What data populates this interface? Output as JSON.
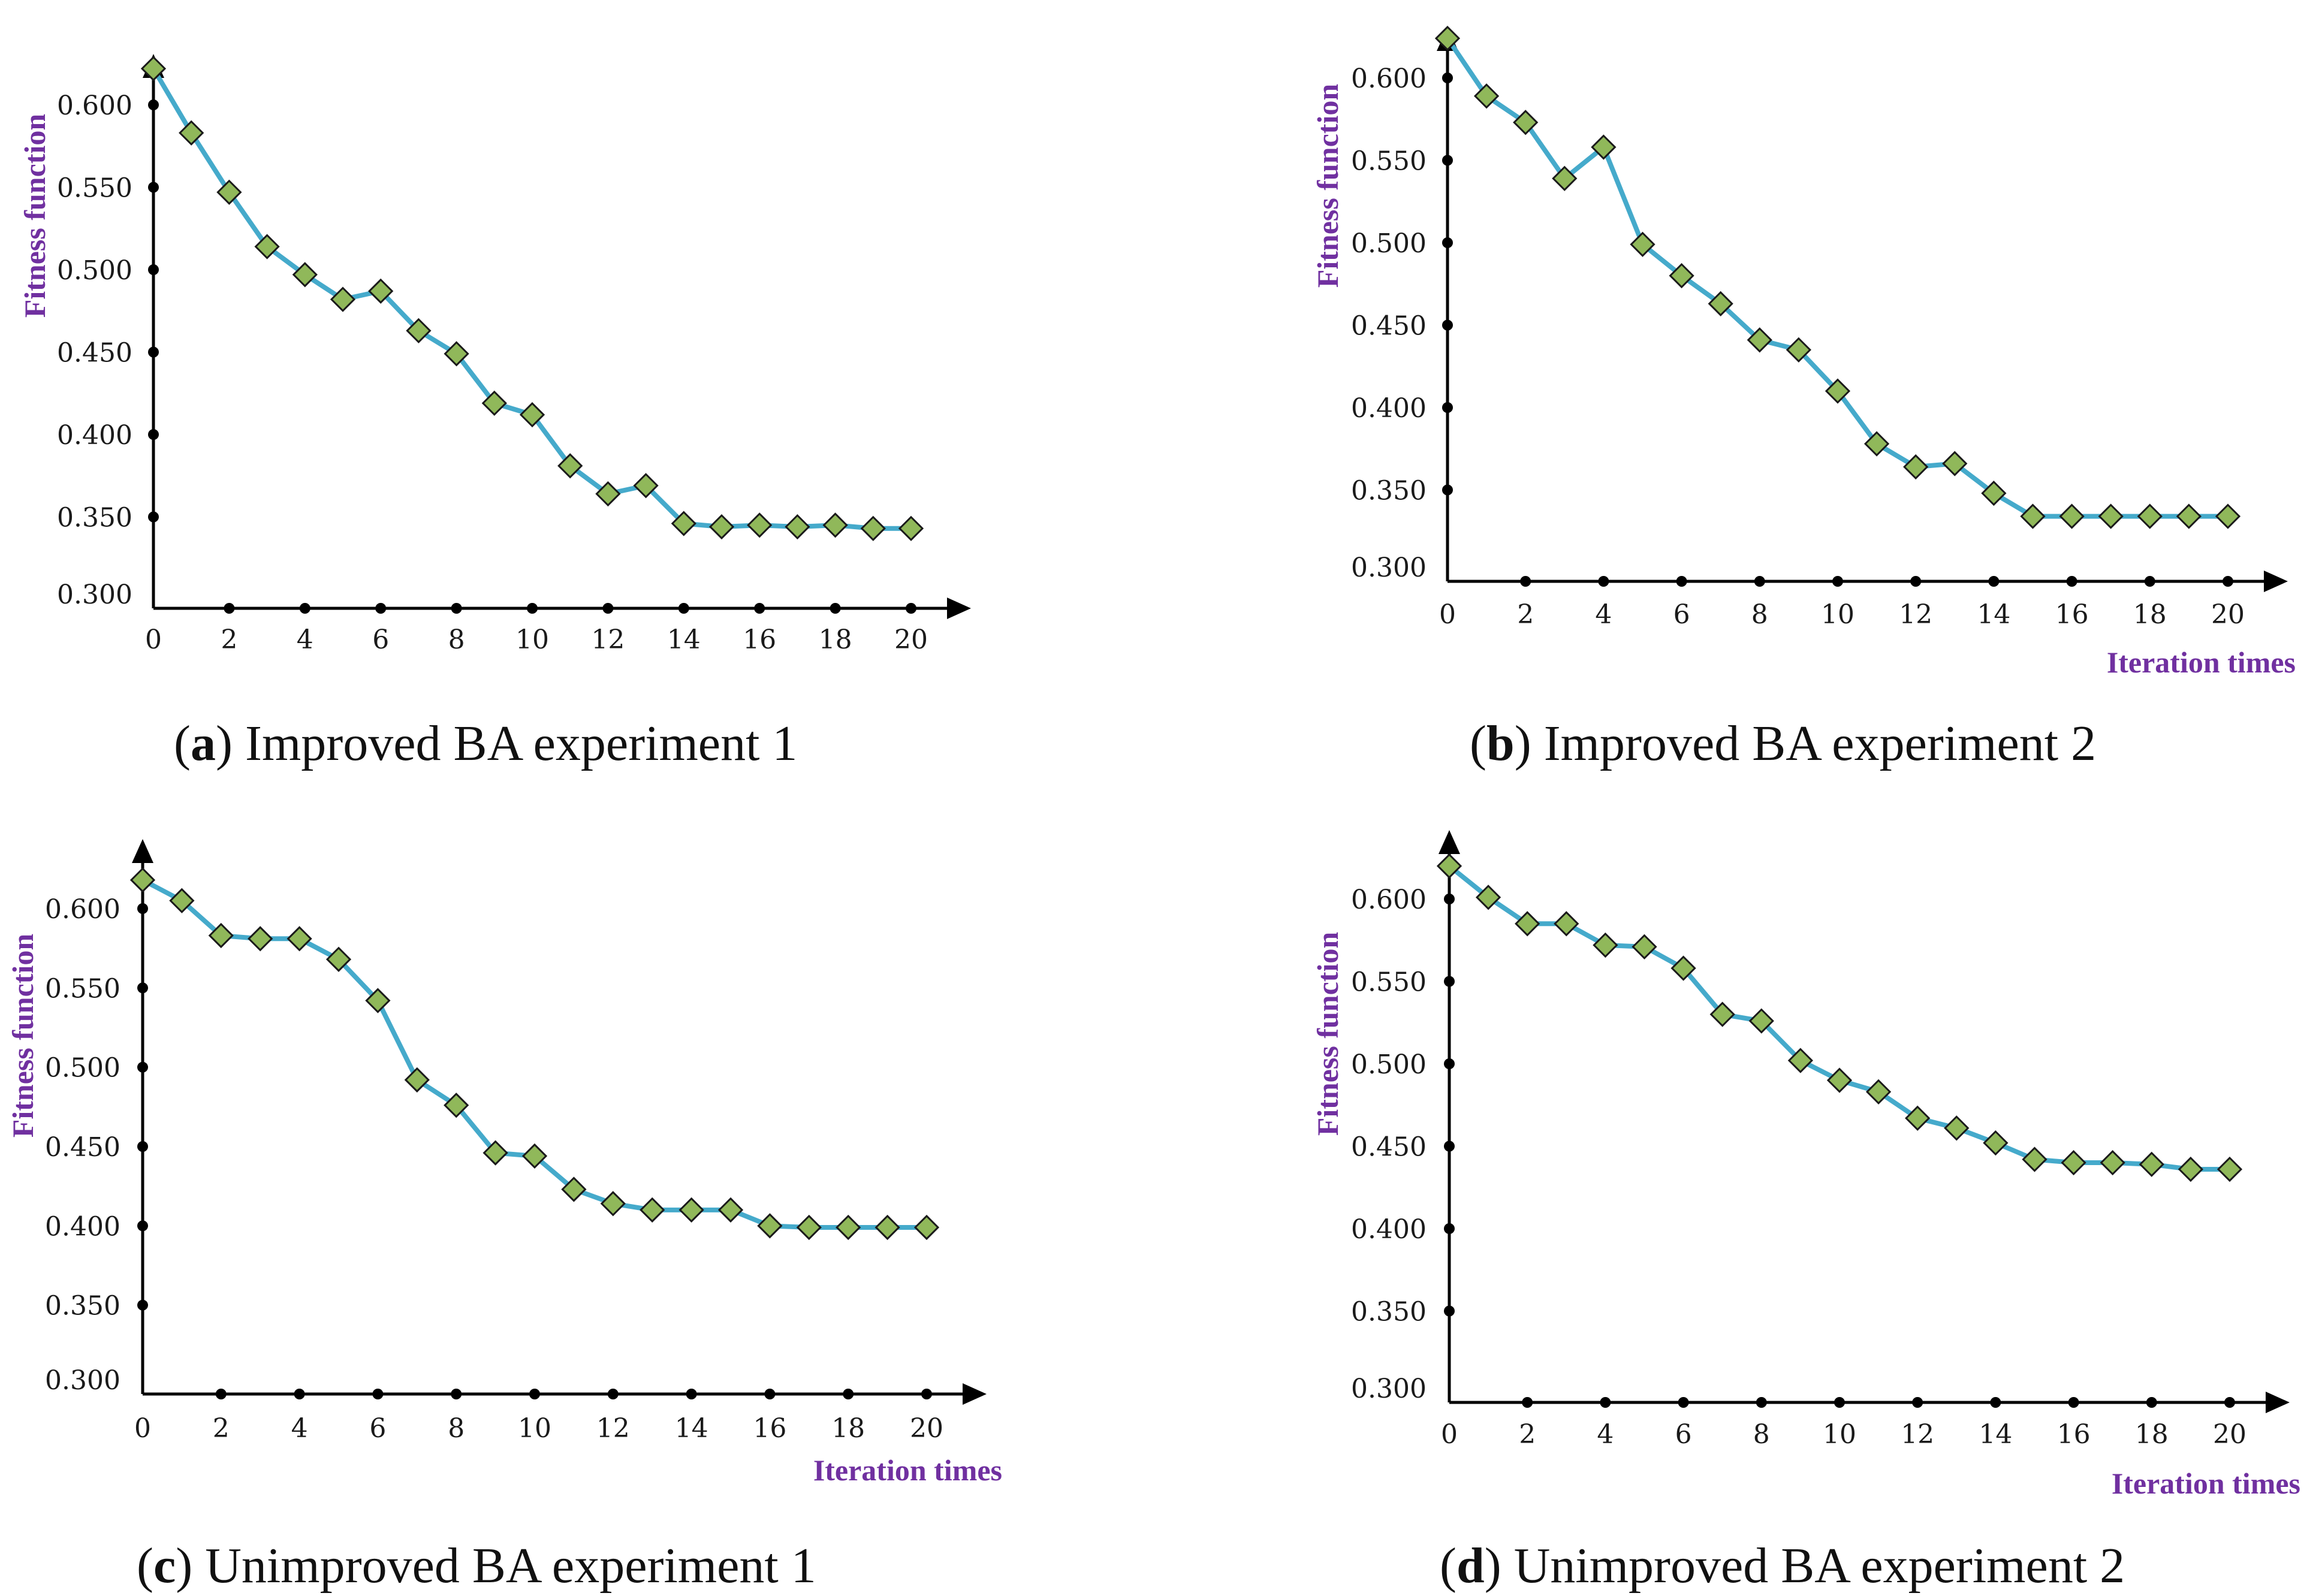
{
  "figure": {
    "colors": {
      "axis": "#000000",
      "line": "#45aacb",
      "marker_fill": "#90b85a",
      "marker_stroke": "#1a1a1a",
      "axis_title": "#7030a0",
      "dot": "#000000"
    }
  },
  "chart_data": [
    {
      "type": "line",
      "panel_letter": "a",
      "title": "Improved BA experiment 1",
      "ylabel": "Fitness function",
      "xlabel": "",
      "ylim": [
        0.3,
        0.62
      ],
      "xlim": [
        0,
        20
      ],
      "yticks": [
        "0.300",
        "0.350",
        "0.400",
        "0.450",
        "0.500",
        "0.550",
        "0.600"
      ],
      "xticks": [
        "0",
        "2",
        "4",
        "6",
        "8",
        "10",
        "12",
        "14",
        "16",
        "18",
        "20"
      ],
      "x": [
        0,
        1,
        2,
        3,
        4,
        5,
        6,
        7,
        8,
        9,
        10,
        11,
        12,
        13,
        14,
        15,
        16,
        17,
        18,
        19,
        20
      ],
      "values": [
        0.622,
        0.583,
        0.547,
        0.514,
        0.497,
        0.482,
        0.487,
        0.463,
        0.449,
        0.419,
        0.412,
        0.381,
        0.364,
        0.369,
        0.346,
        0.344,
        0.345,
        0.344,
        0.345,
        0.343,
        0.343
      ]
    },
    {
      "type": "line",
      "panel_letter": "b",
      "title": "Improved BA experiment 2",
      "ylabel": "Fitness function",
      "xlabel": "Iteration times",
      "ylim": [
        0.3,
        0.62
      ],
      "xlim": [
        0,
        20
      ],
      "yticks": [
        "0.300",
        "0.350",
        "0.400",
        "0.450",
        "0.500",
        "0.550",
        "0.600"
      ],
      "xticks": [
        "0",
        "2",
        "4",
        "6",
        "8",
        "10",
        "12",
        "14",
        "16",
        "18",
        "20"
      ],
      "x": [
        0,
        1,
        2,
        3,
        4,
        5,
        6,
        7,
        8,
        9,
        10,
        11,
        12,
        13,
        14,
        15,
        16,
        17,
        18,
        19,
        20
      ],
      "values": [
        0.624,
        0.589,
        0.573,
        0.539,
        0.558,
        0.499,
        0.48,
        0.463,
        0.441,
        0.435,
        0.41,
        0.378,
        0.364,
        0.366,
        0.348,
        0.334,
        0.334,
        0.334,
        0.334,
        0.334,
        0.334
      ]
    },
    {
      "type": "line",
      "panel_letter": "c",
      "title": "Unimproved BA experiment 1",
      "ylabel": "Fitness function",
      "xlabel": "Iteration times",
      "ylim": [
        0.3,
        0.62
      ],
      "xlim": [
        0,
        20
      ],
      "yticks": [
        "0.300",
        "0.350",
        "0.400",
        "0.450",
        "0.500",
        "0.550",
        "0.600"
      ],
      "xticks": [
        "0",
        "2",
        "4",
        "6",
        "8",
        "10",
        "12",
        "14",
        "16",
        "18",
        "20"
      ],
      "x": [
        0,
        1,
        2,
        3,
        4,
        5,
        6,
        7,
        8,
        9,
        10,
        11,
        12,
        13,
        14,
        15,
        16,
        17,
        18,
        19,
        20
      ],
      "values": [
        0.618,
        0.605,
        0.583,
        0.581,
        0.581,
        0.568,
        0.542,
        0.492,
        0.476,
        0.446,
        0.444,
        0.423,
        0.414,
        0.41,
        0.41,
        0.41,
        0.4,
        0.399,
        0.399,
        0.399,
        0.399
      ]
    },
    {
      "type": "line",
      "panel_letter": "d",
      "title": "Unimproved BA experiment 2",
      "ylabel": "Fitness function",
      "xlabel": "Iteration times",
      "ylim": [
        0.3,
        0.62
      ],
      "xlim": [
        0,
        20
      ],
      "yticks": [
        "0.300",
        "0.350",
        "0.400",
        "0.450",
        "0.500",
        "0.550",
        "0.600"
      ],
      "xticks": [
        "0",
        "2",
        "4",
        "6",
        "8",
        "10",
        "12",
        "14",
        "16",
        "18",
        "20"
      ],
      "x": [
        0,
        1,
        2,
        3,
        4,
        5,
        6,
        7,
        8,
        9,
        10,
        11,
        12,
        13,
        14,
        15,
        16,
        17,
        18,
        19,
        20
      ],
      "values": [
        0.62,
        0.601,
        0.585,
        0.585,
        0.572,
        0.571,
        0.558,
        0.53,
        0.526,
        0.502,
        0.49,
        0.483,
        0.467,
        0.461,
        0.452,
        0.442,
        0.44,
        0.44,
        0.439,
        0.436,
        0.436
      ]
    }
  ]
}
